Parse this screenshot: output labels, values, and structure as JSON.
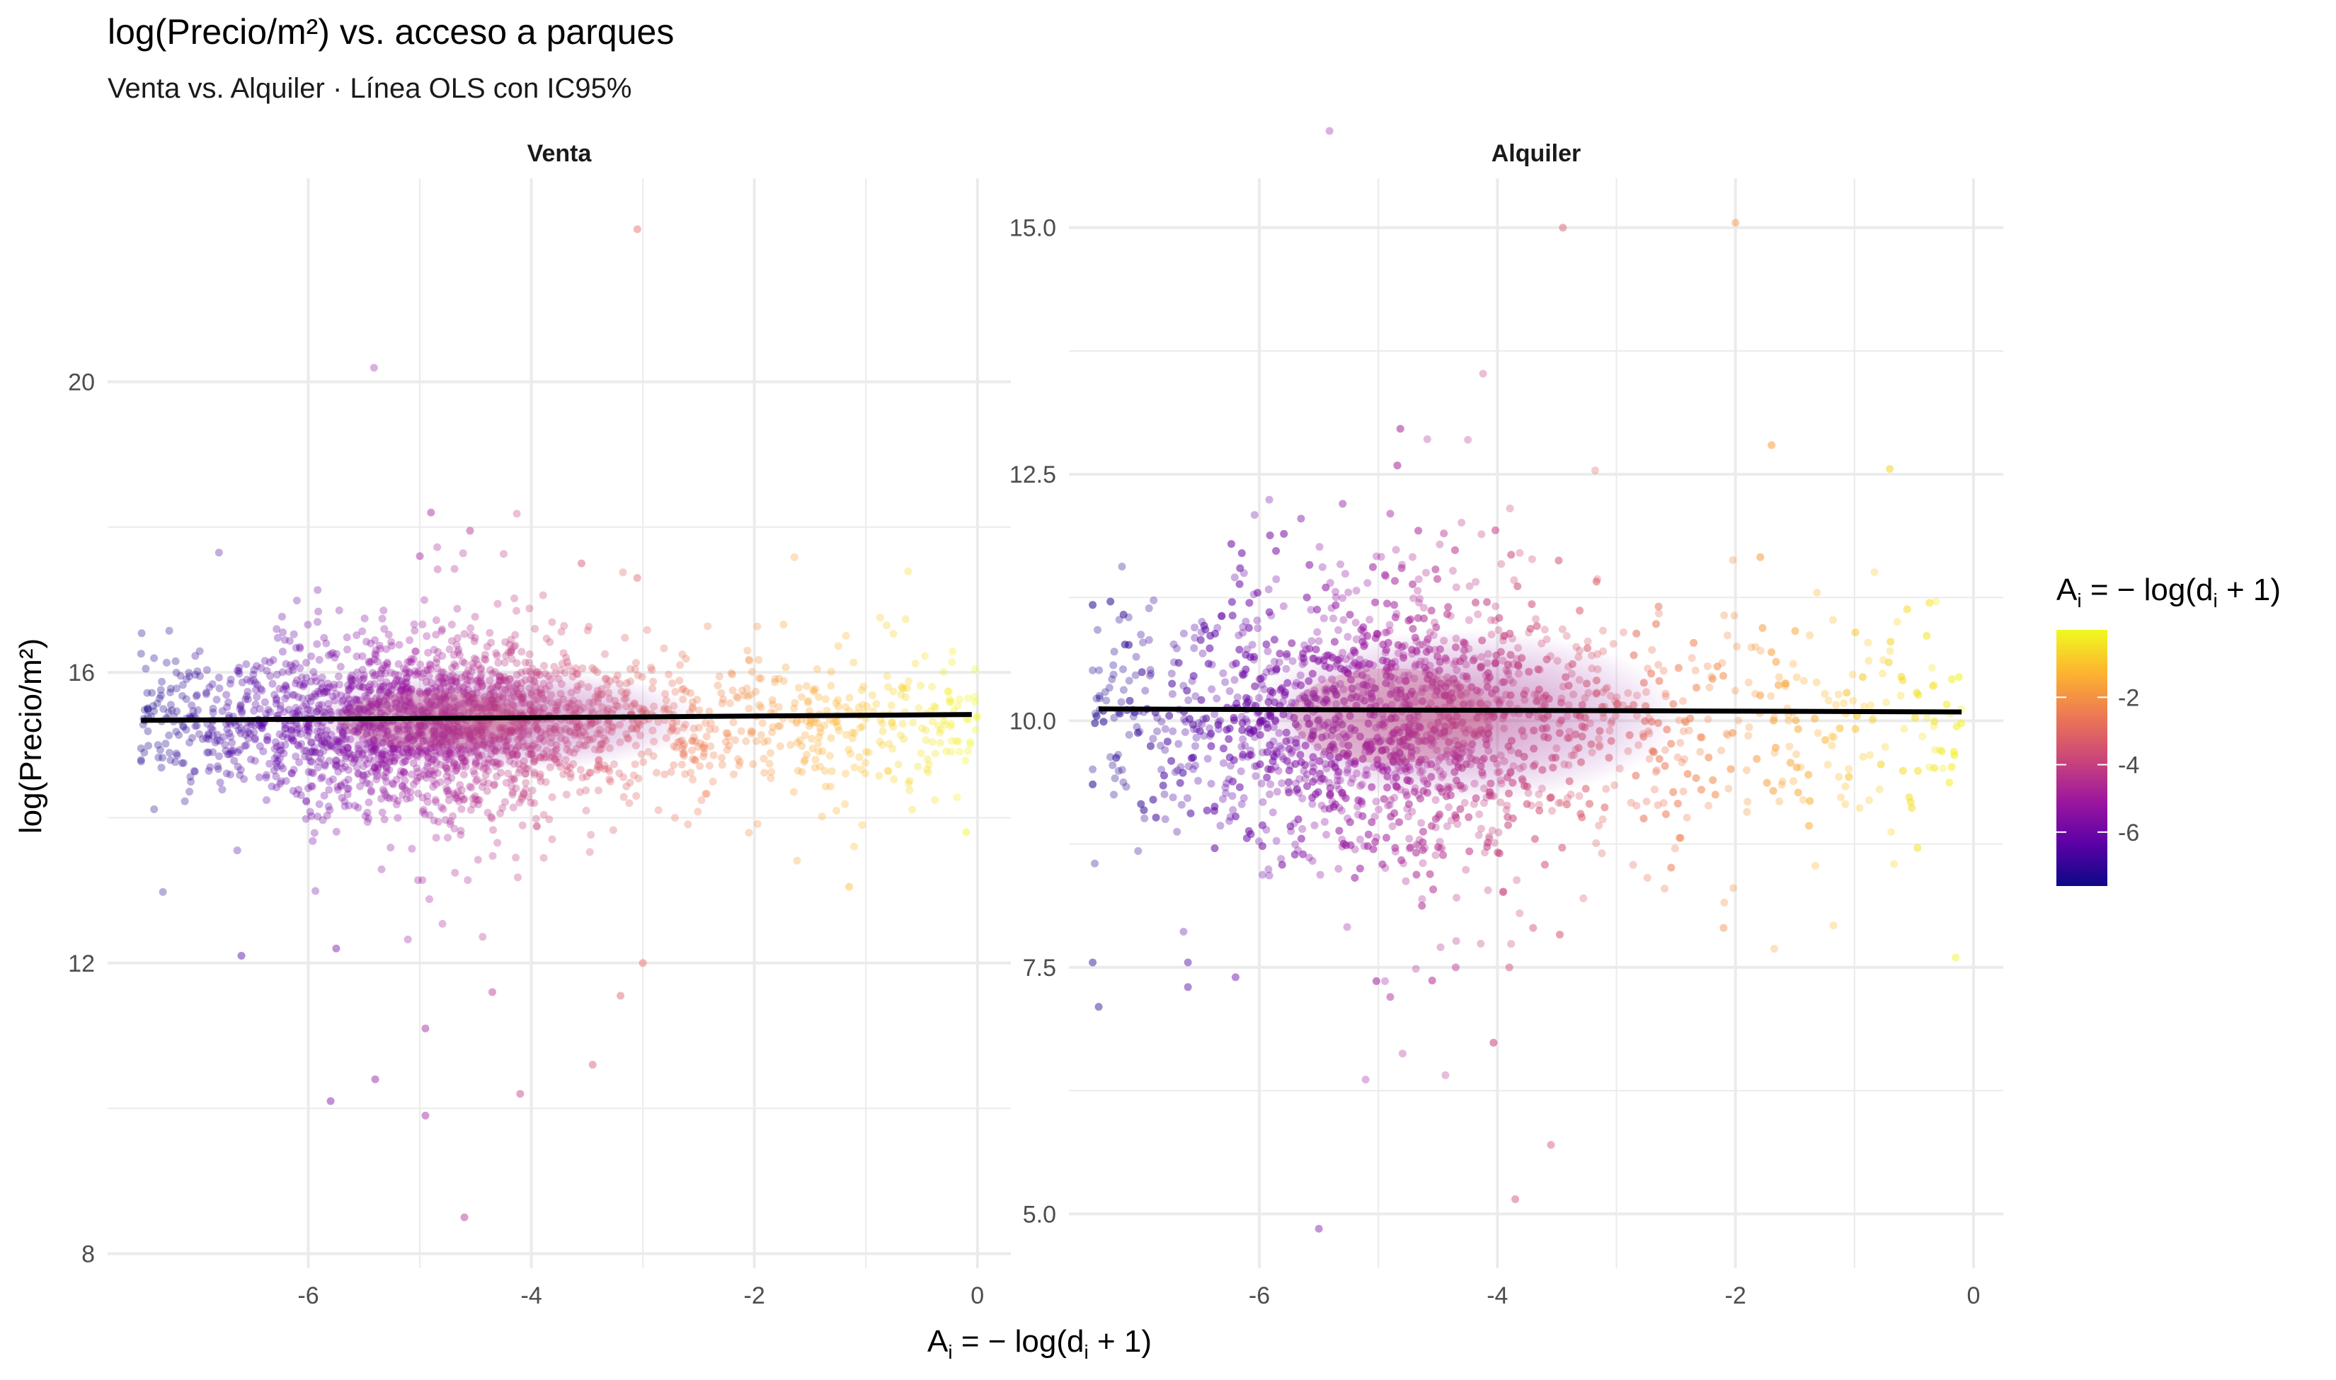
{
  "title": "log(Precio/m²) vs. acceso a parques",
  "subtitle": "Venta vs. Alquiler · Línea OLS con IC95%",
  "legend": {
    "title_main": "A",
    "title_sub": "i",
    "title_rest": " = − log(d",
    "title_sub2": "i",
    "title_end": " + 1)",
    "ticks": [
      "-2",
      "-4",
      "-6"
    ],
    "tick_values": [
      -2,
      -4,
      -6
    ],
    "range": [
      -7.6,
      0
    ],
    "colors": [
      "#0d0887",
      "#5c01a6",
      "#9c179e",
      "#cc4778",
      "#ed7953",
      "#fdb42f",
      "#f0f921"
    ],
    "placement": "right"
  },
  "xlabel": {
    "main": "A",
    "sub": "i",
    "rest": " = − log(d",
    "sub2": "i",
    "end": " + 1)"
  },
  "ylabel": "log(Precio/m²)",
  "chart_data": [
    {
      "type": "scatter",
      "panel": "Venta",
      "x_ticks": [
        "-6",
        "-4",
        "-2",
        "0"
      ],
      "x_tick_values": [
        -6,
        -4,
        -2,
        0
      ],
      "y_ticks": [
        "8",
        "12",
        "16",
        "20"
      ],
      "y_tick_values": [
        8,
        12,
        16,
        20
      ],
      "xlim": [
        -7.8,
        0.3
      ],
      "ylim": [
        7.8,
        22.8
      ],
      "grid": true,
      "ols_line": {
        "x": [
          -7.5,
          -0.05
        ],
        "y": [
          15.34,
          15.42
        ]
      },
      "cloud": {
        "x_range": [
          -7.5,
          0
        ],
        "y_center": 15.3,
        "y_spread": 0.45,
        "density_peak_x": -4.9
      },
      "outliers": [
        {
          "x": -3.05,
          "y": 22.1
        },
        {
          "x": -5.8,
          "y": 10.1
        },
        {
          "x": -4.6,
          "y": 8.5
        },
        {
          "x": -4.95,
          "y": 9.9
        },
        {
          "x": -4.95,
          "y": 11.1
        },
        {
          "x": -5.4,
          "y": 10.4
        },
        {
          "x": -4.1,
          "y": 10.2
        },
        {
          "x": -3.45,
          "y": 10.6
        },
        {
          "x": -4.35,
          "y": 11.6
        },
        {
          "x": -3.2,
          "y": 11.55
        },
        {
          "x": -3.0,
          "y": 12.0
        },
        {
          "x": -5.75,
          "y": 12.2
        },
        {
          "x": -6.6,
          "y": 12.1
        },
        {
          "x": -1.15,
          "y": 13.05
        },
        {
          "x": -4.9,
          "y": 18.2
        },
        {
          "x": -4.55,
          "y": 17.95
        },
        {
          "x": -3.05,
          "y": 17.3
        },
        {
          "x": -5.0,
          "y": 17.6
        },
        {
          "x": -3.55,
          "y": 17.5
        },
        {
          "x": -0.1,
          "y": 13.8
        }
      ]
    },
    {
      "type": "scatter",
      "panel": "Alquiler",
      "x_ticks": [
        "-6",
        "-4",
        "-2",
        "0"
      ],
      "x_tick_values": [
        -6,
        -4,
        -2,
        0
      ],
      "y_ticks": [
        "5.0",
        "7.5",
        "10.0",
        "12.5",
        "15.0"
      ],
      "y_tick_values": [
        5,
        7.5,
        10,
        12.5,
        15
      ],
      "xlim": [
        -7.6,
        0.25
      ],
      "ylim": [
        4.45,
        15.5
      ],
      "grid": true,
      "ols_line": {
        "x": [
          -7.35,
          -0.1
        ],
        "y": [
          10.12,
          10.09
        ]
      },
      "cloud": {
        "x_range": [
          -7.4,
          -0.1
        ],
        "y_center": 10.0,
        "y_spread": 0.55,
        "density_peak_x": -4.9
      },
      "outliers": [
        {
          "x": -3.45,
          "y": 15.0
        },
        {
          "x": -2.0,
          "y": 15.05
        },
        {
          "x": -5.5,
          "y": 4.85
        },
        {
          "x": -3.85,
          "y": 5.15
        },
        {
          "x": -3.55,
          "y": 5.7
        },
        {
          "x": -4.9,
          "y": 7.2
        },
        {
          "x": -4.35,
          "y": 7.5
        },
        {
          "x": -3.9,
          "y": 7.5
        },
        {
          "x": -3.7,
          "y": 7.9
        },
        {
          "x": -7.35,
          "y": 7.1
        },
        {
          "x": -7.4,
          "y": 7.55
        },
        {
          "x": -6.6,
          "y": 7.3
        },
        {
          "x": -6.6,
          "y": 7.55
        },
        {
          "x": -6.2,
          "y": 7.4
        },
        {
          "x": -0.15,
          "y": 7.6
        },
        {
          "x": -2.1,
          "y": 7.9
        },
        {
          "x": -5.3,
          "y": 12.2
        },
        {
          "x": -4.9,
          "y": 12.1
        },
        {
          "x": -4.45,
          "y": 11.9
        },
        {
          "x": -5.65,
          "y": 12.05
        }
      ]
    }
  ]
}
